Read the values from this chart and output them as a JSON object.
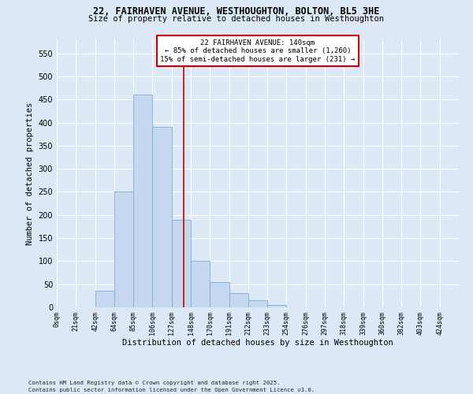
{
  "title_line1": "22, FAIRHAVEN AVENUE, WESTHOUGHTON, BOLTON, BL5 3HE",
  "title_line2": "Size of property relative to detached houses in Westhoughton",
  "xlabel": "Distribution of detached houses by size in Westhoughton",
  "ylabel": "Number of detached properties",
  "bin_labels": [
    "0sqm",
    "21sqm",
    "42sqm",
    "64sqm",
    "85sqm",
    "106sqm",
    "127sqm",
    "148sqm",
    "170sqm",
    "191sqm",
    "212sqm",
    "233sqm",
    "254sqm",
    "276sqm",
    "297sqm",
    "318sqm",
    "339sqm",
    "360sqm",
    "382sqm",
    "403sqm",
    "424sqm"
  ],
  "bar_heights": [
    0,
    0,
    35,
    250,
    460,
    390,
    190,
    100,
    55,
    30,
    15,
    5,
    0,
    0,
    0,
    0,
    0,
    0,
    0,
    0,
    0
  ],
  "bar_color": "#c5d8ef",
  "bar_edge_color": "#7aafd4",
  "vline_color": "#cc0000",
  "annotation_title": "22 FAIRHAVEN AVENUE: 140sqm",
  "annotation_line1": "← 85% of detached houses are smaller (1,260)",
  "annotation_line2": "15% of semi-detached houses are larger (231) →",
  "annotation_box_color": "#ffffff",
  "annotation_box_edge_color": "#cc0000",
  "ylim": [
    0,
    580
  ],
  "yticks": [
    0,
    50,
    100,
    150,
    200,
    250,
    300,
    350,
    400,
    450,
    500,
    550
  ],
  "fig_facecolor": "#dce8f5",
  "ax_facecolor": "#dce8f5",
  "footer_line1": "Contains HM Land Registry data © Crown copyright and database right 2025.",
  "footer_line2": "Contains public sector information licensed under the Open Government Licence v3.0."
}
